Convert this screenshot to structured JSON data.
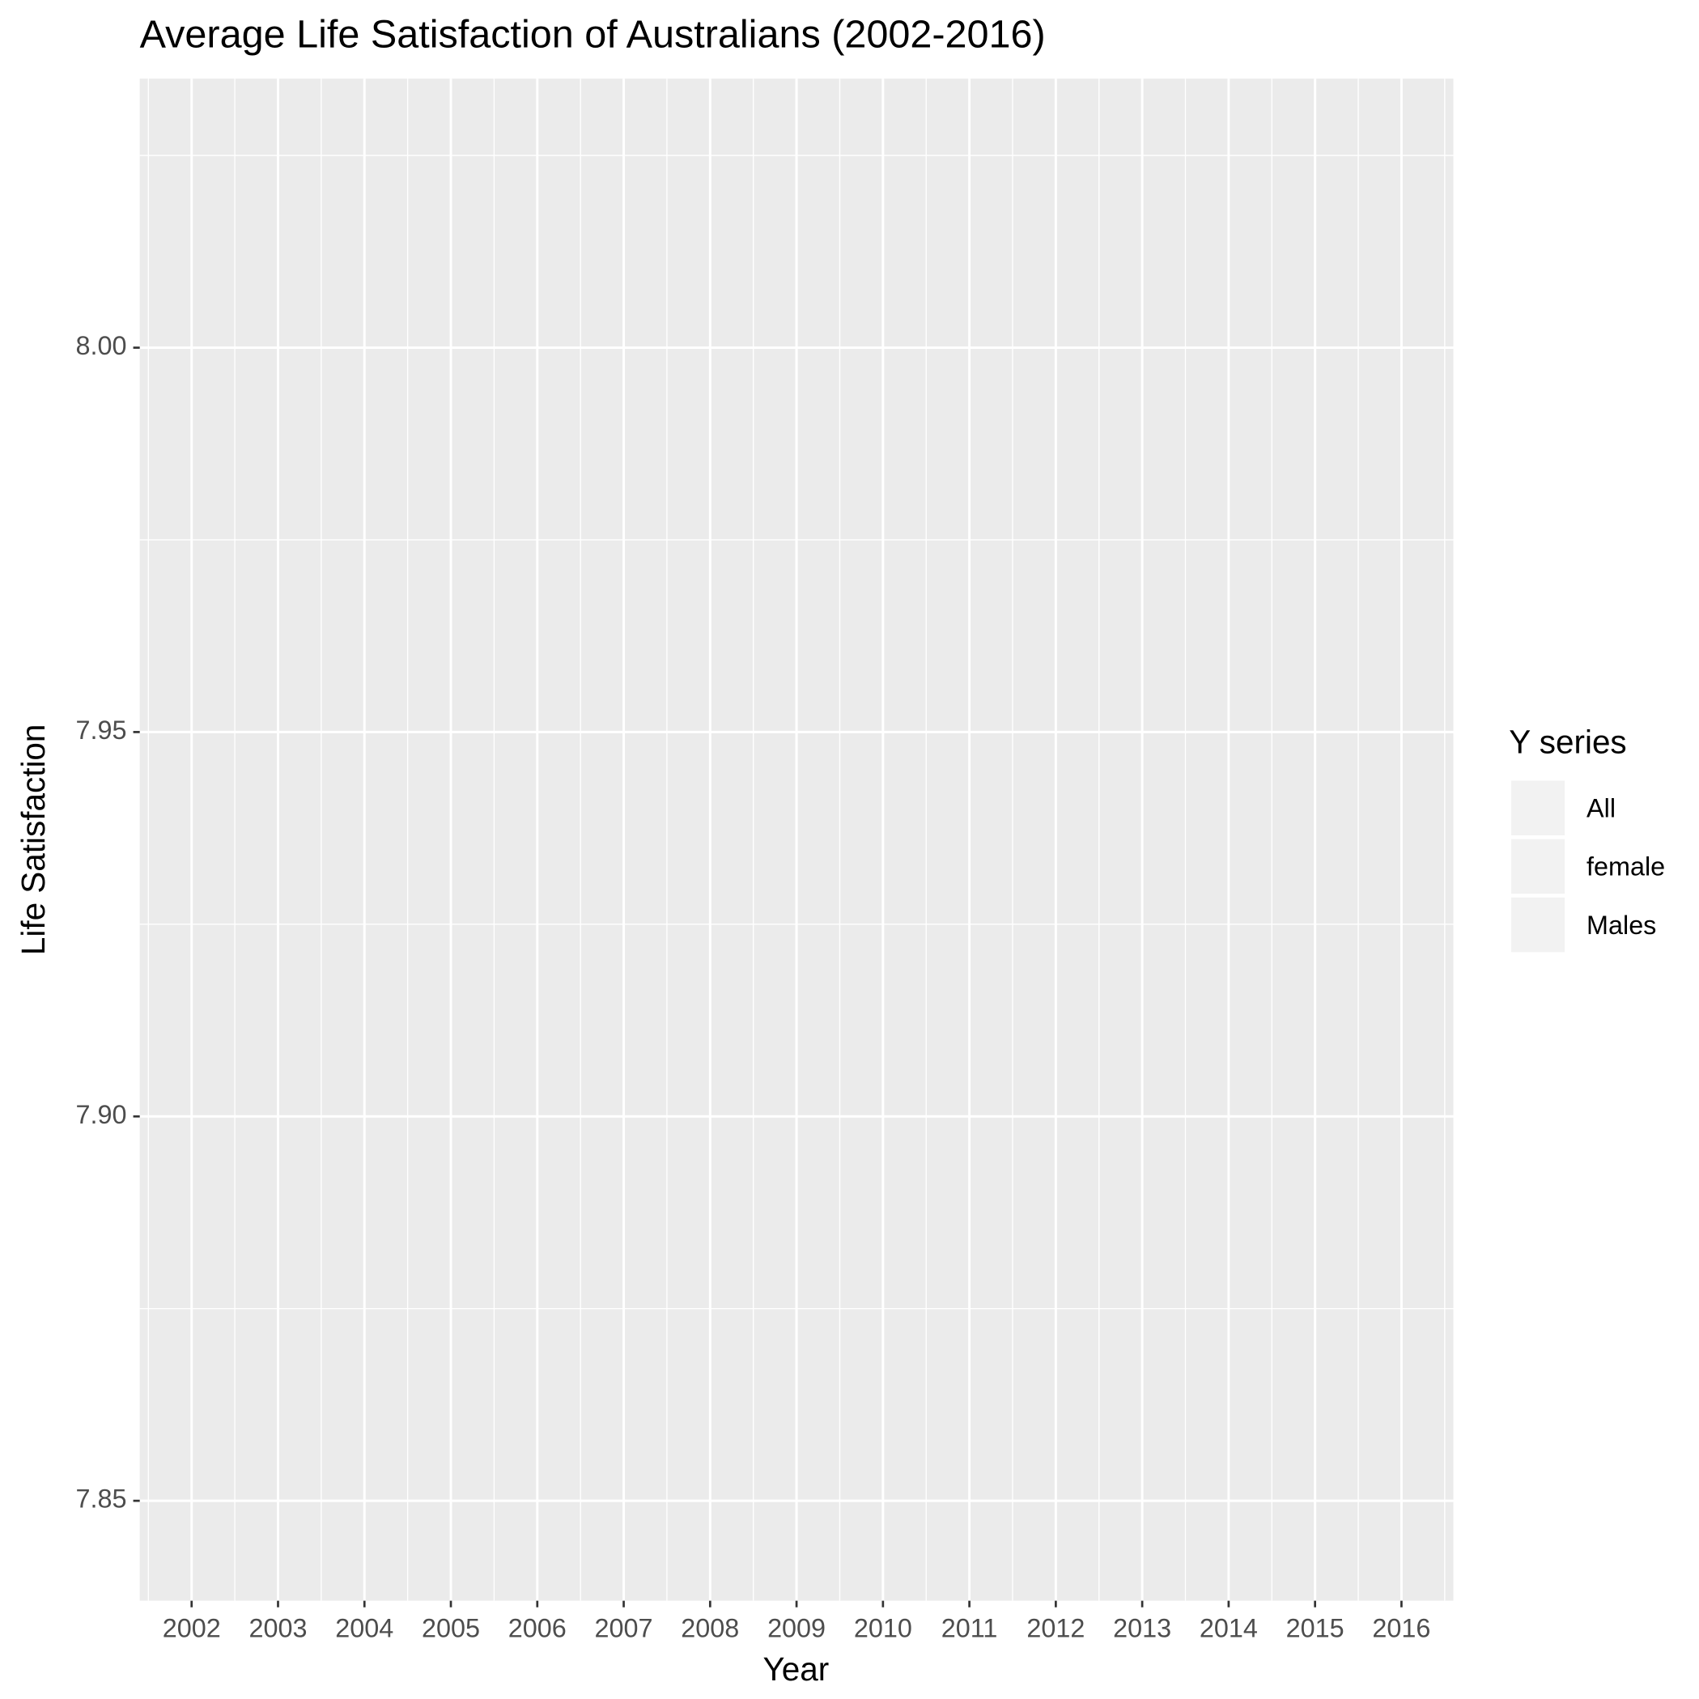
{
  "chart_data": {
    "type": "line",
    "title": "Average Life Satisfaction of Australians (2002-2016)",
    "x_label": "Year",
    "y_label": "Life Satisfaction",
    "legend_title": "Y series",
    "categories": [
      "2002",
      "2003",
      "2004",
      "2005",
      "2006",
      "2007",
      "2008",
      "2009",
      "2010",
      "2011",
      "2012",
      "2013",
      "2014",
      "2015",
      "2016"
    ],
    "series": [
      {
        "name": "All",
        "values": [
          null,
          null,
          null,
          null,
          null,
          null,
          null,
          null,
          null,
          null,
          null,
          null,
          null,
          null,
          null
        ]
      },
      {
        "name": "female",
        "values": [
          null,
          null,
          null,
          null,
          null,
          null,
          null,
          null,
          null,
          null,
          null,
          null,
          null,
          null,
          null
        ]
      },
      {
        "name": "Males",
        "values": [
          null,
          null,
          null,
          null,
          null,
          null,
          null,
          null,
          null,
          null,
          null,
          null,
          null,
          null,
          null
        ]
      }
    ],
    "ylim": [
      7.837,
      8.035
    ],
    "yticks": [
      {
        "value": 7.85,
        "label": "7.85"
      },
      {
        "value": 7.9,
        "label": "7.90"
      },
      {
        "value": 7.95,
        "label": "7.95"
      },
      {
        "value": 8,
        "label": "8.00"
      }
    ],
    "grid": true,
    "legend": "right"
  }
}
